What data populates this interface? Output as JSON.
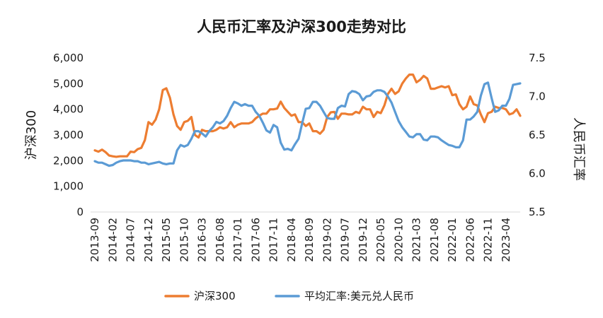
{
  "chart_data": {
    "type": "line",
    "title": "人民币汇率及沪深300走势对比",
    "y_left_label": "沪深300",
    "y_right_label": "人民币汇率",
    "y_left_lim": [
      0,
      6000
    ],
    "y_left_ticks": [
      "0",
      "1,000",
      "2,000",
      "3,000",
      "4,000",
      "5,000",
      "6,000"
    ],
    "y_left_tick_values": [
      0,
      1000,
      2000,
      3000,
      4000,
      5000,
      6000
    ],
    "y_right_lim": [
      5.5,
      7.5
    ],
    "y_right_ticks": [
      "5.5",
      "6.0",
      "6.5",
      "7.0",
      "7.5"
    ],
    "y_right_tick_values": [
      5.5,
      6.0,
      6.5,
      7.0,
      7.5
    ],
    "x_start": "2013-09",
    "x_end": "2023-08",
    "x_tick_labels": [
      "2013-09",
      "2014-02",
      "2014-07",
      "2014-12",
      "2015-05",
      "2015-10",
      "2016-03",
      "2016-08",
      "2017-01",
      "2017-06",
      "2017-11",
      "2018-04",
      "2018-09",
      "2019-02",
      "2019-07",
      "2019-12",
      "2020-05",
      "2020-10",
      "2021-03",
      "2021-08",
      "2022-01",
      "2022-06",
      "2022-11",
      "2023-04"
    ],
    "series": [
      {
        "name": "沪深300",
        "axis": "left",
        "color": "#ED7D31",
        "points": [
          [
            "2013-09",
            2400
          ],
          [
            "2013-10",
            2350
          ],
          [
            "2013-11",
            2430
          ],
          [
            "2013-12",
            2330
          ],
          [
            "2014-01",
            2200
          ],
          [
            "2014-02",
            2170
          ],
          [
            "2014-03",
            2150
          ],
          [
            "2014-04",
            2170
          ],
          [
            "2014-05",
            2170
          ],
          [
            "2014-06",
            2170
          ],
          [
            "2014-07",
            2350
          ],
          [
            "2014-08",
            2330
          ],
          [
            "2014-09",
            2450
          ],
          [
            "2014-10",
            2500
          ],
          [
            "2014-11",
            2800
          ],
          [
            "2014-12",
            3500
          ],
          [
            "2015-01",
            3400
          ],
          [
            "2015-02",
            3600
          ],
          [
            "2015-03",
            4000
          ],
          [
            "2015-04",
            4750
          ],
          [
            "2015-05",
            4820
          ],
          [
            "2015-06",
            4450
          ],
          [
            "2015-07",
            3800
          ],
          [
            "2015-08",
            3350
          ],
          [
            "2015-09",
            3200
          ],
          [
            "2015-10",
            3500
          ],
          [
            "2015-11",
            3550
          ],
          [
            "2015-12",
            3700
          ],
          [
            "2016-01",
            3000
          ],
          [
            "2016-02",
            2900
          ],
          [
            "2016-03",
            3200
          ],
          [
            "2016-04",
            3150
          ],
          [
            "2016-05",
            3150
          ],
          [
            "2016-06",
            3150
          ],
          [
            "2016-07",
            3200
          ],
          [
            "2016-08",
            3300
          ],
          [
            "2016-09",
            3250
          ],
          [
            "2016-10",
            3300
          ],
          [
            "2016-11",
            3500
          ],
          [
            "2016-12",
            3300
          ],
          [
            "2017-01",
            3400
          ],
          [
            "2017-02",
            3450
          ],
          [
            "2017-03",
            3450
          ],
          [
            "2017-04",
            3450
          ],
          [
            "2017-05",
            3500
          ],
          [
            "2017-06",
            3650
          ],
          [
            "2017-07",
            3750
          ],
          [
            "2017-08",
            3830
          ],
          [
            "2017-09",
            3830
          ],
          [
            "2017-10",
            4000
          ],
          [
            "2017-11",
            4000
          ],
          [
            "2017-12",
            4030
          ],
          [
            "2018-01",
            4300
          ],
          [
            "2018-02",
            4050
          ],
          [
            "2018-03",
            3900
          ],
          [
            "2018-04",
            3750
          ],
          [
            "2018-05",
            3800
          ],
          [
            "2018-06",
            3500
          ],
          [
            "2018-07",
            3500
          ],
          [
            "2018-08",
            3350
          ],
          [
            "2018-09",
            3450
          ],
          [
            "2018-10",
            3150
          ],
          [
            "2018-11",
            3150
          ],
          [
            "2018-12",
            3050
          ],
          [
            "2019-01",
            3200
          ],
          [
            "2019-02",
            3700
          ],
          [
            "2019-03",
            3880
          ],
          [
            "2019-04",
            3900
          ],
          [
            "2019-05",
            3630
          ],
          [
            "2019-06",
            3830
          ],
          [
            "2019-07",
            3830
          ],
          [
            "2019-08",
            3800
          ],
          [
            "2019-09",
            3800
          ],
          [
            "2019-10",
            3900
          ],
          [
            "2019-11",
            3850
          ],
          [
            "2019-12",
            4100
          ],
          [
            "2020-01",
            4000
          ],
          [
            "2020-02",
            4000
          ],
          [
            "2020-03",
            3700
          ],
          [
            "2020-04",
            3900
          ],
          [
            "2020-05",
            3850
          ],
          [
            "2020-06",
            4150
          ],
          [
            "2020-07",
            4600
          ],
          [
            "2020-08",
            4800
          ],
          [
            "2020-09",
            4600
          ],
          [
            "2020-10",
            4700
          ],
          [
            "2020-11",
            5000
          ],
          [
            "2020-12",
            5200
          ],
          [
            "2021-01",
            5350
          ],
          [
            "2021-02",
            5350
          ],
          [
            "2021-03",
            5050
          ],
          [
            "2021-04",
            5150
          ],
          [
            "2021-05",
            5300
          ],
          [
            "2021-06",
            5200
          ],
          [
            "2021-07",
            4800
          ],
          [
            "2021-08",
            4800
          ],
          [
            "2021-09",
            4850
          ],
          [
            "2021-10",
            4900
          ],
          [
            "2021-11",
            4850
          ],
          [
            "2021-12",
            4900
          ],
          [
            "2022-01",
            4550
          ],
          [
            "2022-02",
            4580
          ],
          [
            "2022-03",
            4200
          ],
          [
            "2022-04",
            4000
          ],
          [
            "2022-05",
            4100
          ],
          [
            "2022-06",
            4500
          ],
          [
            "2022-07",
            4200
          ],
          [
            "2022-08",
            4150
          ],
          [
            "2022-09",
            3800
          ],
          [
            "2022-10",
            3500
          ],
          [
            "2022-11",
            3850
          ],
          [
            "2022-12",
            3900
          ],
          [
            "2023-01",
            4100
          ],
          [
            "2023-02",
            4050
          ],
          [
            "2023-03",
            4050
          ],
          [
            "2023-04",
            4000
          ],
          [
            "2023-05",
            3800
          ],
          [
            "2023-06",
            3850
          ],
          [
            "2023-07",
            4000
          ],
          [
            "2023-08",
            3750
          ]
        ]
      },
      {
        "name": "平均汇率:美元兑人民币",
        "axis": "right",
        "color": "#5B9BD5",
        "points": [
          [
            "2013-09",
            6.16
          ],
          [
            "2013-10",
            6.14
          ],
          [
            "2013-11",
            6.14
          ],
          [
            "2013-12",
            6.12
          ],
          [
            "2014-01",
            6.1
          ],
          [
            "2014-02",
            6.11
          ],
          [
            "2014-03",
            6.14
          ],
          [
            "2014-04",
            6.16
          ],
          [
            "2014-05",
            6.17
          ],
          [
            "2014-06",
            6.17
          ],
          [
            "2014-07",
            6.17
          ],
          [
            "2014-08",
            6.16
          ],
          [
            "2014-09",
            6.16
          ],
          [
            "2014-10",
            6.14
          ],
          [
            "2014-11",
            6.14
          ],
          [
            "2014-12",
            6.12
          ],
          [
            "2015-01",
            6.13
          ],
          [
            "2015-02",
            6.14
          ],
          [
            "2015-03",
            6.15
          ],
          [
            "2015-04",
            6.13
          ],
          [
            "2015-05",
            6.12
          ],
          [
            "2015-06",
            6.13
          ],
          [
            "2015-07",
            6.13
          ],
          [
            "2015-08",
            6.3
          ],
          [
            "2015-09",
            6.37
          ],
          [
            "2015-10",
            6.35
          ],
          [
            "2015-11",
            6.37
          ],
          [
            "2015-12",
            6.45
          ],
          [
            "2016-01",
            6.55
          ],
          [
            "2016-02",
            6.55
          ],
          [
            "2016-03",
            6.52
          ],
          [
            "2016-04",
            6.48
          ],
          [
            "2016-05",
            6.55
          ],
          [
            "2016-06",
            6.6
          ],
          [
            "2016-07",
            6.67
          ],
          [
            "2016-08",
            6.65
          ],
          [
            "2016-09",
            6.68
          ],
          [
            "2016-10",
            6.75
          ],
          [
            "2016-11",
            6.85
          ],
          [
            "2016-12",
            6.93
          ],
          [
            "2017-01",
            6.91
          ],
          [
            "2017-02",
            6.88
          ],
          [
            "2017-03",
            6.9
          ],
          [
            "2017-04",
            6.88
          ],
          [
            "2017-05",
            6.88
          ],
          [
            "2017-06",
            6.8
          ],
          [
            "2017-07",
            6.75
          ],
          [
            "2017-08",
            6.66
          ],
          [
            "2017-09",
            6.56
          ],
          [
            "2017-10",
            6.53
          ],
          [
            "2017-11",
            6.63
          ],
          [
            "2017-12",
            6.6
          ],
          [
            "2018-01",
            6.4
          ],
          [
            "2018-02",
            6.31
          ],
          [
            "2018-03",
            6.32
          ],
          [
            "2018-04",
            6.3
          ],
          [
            "2018-05",
            6.38
          ],
          [
            "2018-06",
            6.45
          ],
          [
            "2018-07",
            6.65
          ],
          [
            "2018-08",
            6.84
          ],
          [
            "2018-09",
            6.85
          ],
          [
            "2018-10",
            6.93
          ],
          [
            "2018-11",
            6.93
          ],
          [
            "2018-12",
            6.88
          ],
          [
            "2019-01",
            6.8
          ],
          [
            "2019-02",
            6.72
          ],
          [
            "2019-03",
            6.71
          ],
          [
            "2019-04",
            6.71
          ],
          [
            "2019-05",
            6.85
          ],
          [
            "2019-06",
            6.88
          ],
          [
            "2019-07",
            6.87
          ],
          [
            "2019-08",
            7.03
          ],
          [
            "2019-09",
            7.07
          ],
          [
            "2019-10",
            7.06
          ],
          [
            "2019-11",
            7.03
          ],
          [
            "2019-12",
            6.95
          ],
          [
            "2020-01",
            7.0
          ],
          [
            "2020-02",
            7.01
          ],
          [
            "2020-03",
            7.06
          ],
          [
            "2020-04",
            7.08
          ],
          [
            "2020-05",
            7.08
          ],
          [
            "2020-06",
            7.06
          ],
          [
            "2020-07",
            7.0
          ],
          [
            "2020-08",
            6.92
          ],
          [
            "2020-09",
            6.8
          ],
          [
            "2020-10",
            6.68
          ],
          [
            "2020-11",
            6.6
          ],
          [
            "2020-12",
            6.54
          ],
          [
            "2021-01",
            6.48
          ],
          [
            "2021-02",
            6.47
          ],
          [
            "2021-03",
            6.51
          ],
          [
            "2021-04",
            6.51
          ],
          [
            "2021-05",
            6.44
          ],
          [
            "2021-06",
            6.43
          ],
          [
            "2021-07",
            6.48
          ],
          [
            "2021-08",
            6.48
          ],
          [
            "2021-09",
            6.47
          ],
          [
            "2021-10",
            6.43
          ],
          [
            "2021-11",
            6.4
          ],
          [
            "2021-12",
            6.37
          ],
          [
            "2022-01",
            6.36
          ],
          [
            "2022-02",
            6.34
          ],
          [
            "2022-03",
            6.34
          ],
          [
            "2022-04",
            6.43
          ],
          [
            "2022-05",
            6.7
          ],
          [
            "2022-06",
            6.7
          ],
          [
            "2022-07",
            6.74
          ],
          [
            "2022-08",
            6.8
          ],
          [
            "2022-09",
            7.01
          ],
          [
            "2022-10",
            7.16
          ],
          [
            "2022-11",
            7.18
          ],
          [
            "2022-12",
            6.98
          ],
          [
            "2023-01",
            6.8
          ],
          [
            "2023-02",
            6.82
          ],
          [
            "2023-03",
            6.88
          ],
          [
            "2023-04",
            6.88
          ],
          [
            "2023-05",
            6.97
          ],
          [
            "2023-06",
            7.15
          ],
          [
            "2023-07",
            7.16
          ],
          [
            "2023-08",
            7.17
          ]
        ]
      }
    ],
    "legend_position": "bottom"
  }
}
